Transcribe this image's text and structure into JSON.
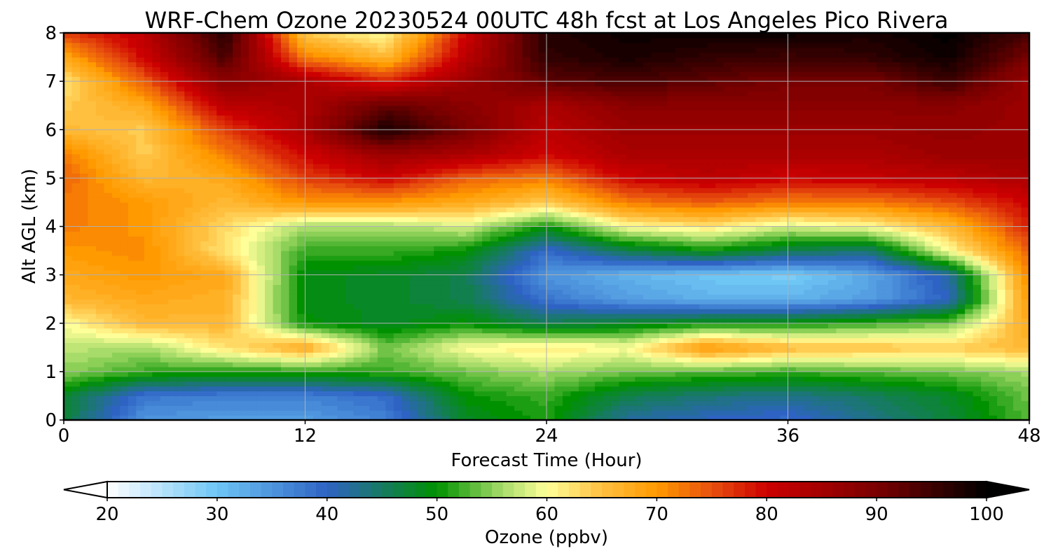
{
  "chart_data": {
    "type": "heatmap",
    "title": "WRF-Chem Ozone  20230524 00UTC 48h fcst at Los Angeles Pico Rivera",
    "xlabel": "Forecast Time (Hour)",
    "ylabel": "Alt AGL (km)",
    "xlim": [
      0,
      48
    ],
    "ylim": [
      0,
      8
    ],
    "x_ticks": [
      0,
      12,
      24,
      36,
      48
    ],
    "y_ticks": [
      0,
      1,
      2,
      3,
      4,
      5,
      6,
      7,
      8
    ],
    "grid": true,
    "colorbar": {
      "label": "Ozone  (ppbv)",
      "min": 20,
      "max": 100,
      "ticks": [
        20,
        30,
        40,
        50,
        60,
        70,
        80,
        90,
        100
      ],
      "extend": "both",
      "colors": [
        {
          "value": 20,
          "color": "#ffffff"
        },
        {
          "value": 30,
          "color": "#6ec6f5"
        },
        {
          "value": 40,
          "color": "#2e63c4"
        },
        {
          "value": 50,
          "color": "#009100"
        },
        {
          "value": 56,
          "color": "#a8dc6a"
        },
        {
          "value": 60,
          "color": "#ffff99"
        },
        {
          "value": 65,
          "color": "#ffc040"
        },
        {
          "value": 70,
          "color": "#ff9a00"
        },
        {
          "value": 75,
          "color": "#e8500e"
        },
        {
          "value": 80,
          "color": "#cc0000"
        },
        {
          "value": 90,
          "color": "#7a0000"
        },
        {
          "value": 100,
          "color": "#000000"
        }
      ]
    },
    "x": [
      0,
      4,
      8,
      12,
      16,
      20,
      24,
      28,
      32,
      36,
      40,
      44,
      48
    ],
    "y": [
      0,
      0.5,
      1,
      1.5,
      2,
      2.5,
      3,
      3.5,
      4,
      4.5,
      5,
      5.5,
      6,
      6.5,
      7,
      7.5,
      8
    ],
    "z": [
      [
        47,
        35,
        34,
        34,
        37,
        48,
        51,
        42,
        40,
        39,
        43,
        47,
        53
      ],
      [
        48,
        38,
        37,
        37,
        39,
        50,
        52,
        46,
        44,
        43,
        45,
        48,
        54
      ],
      [
        55,
        52,
        51,
        51,
        52,
        54,
        56,
        54,
        53,
        52,
        53,
        54,
        56
      ],
      [
        57,
        56,
        62,
        68,
        54,
        60,
        62,
        60,
        70,
        66,
        65,
        64,
        66
      ],
      [
        60,
        66,
        66,
        50,
        48,
        50,
        46,
        48,
        50,
        50,
        52,
        54,
        68
      ],
      [
        66,
        68,
        67,
        49,
        48,
        46,
        38,
        34,
        32,
        32,
        34,
        40,
        70
      ],
      [
        68,
        70,
        68,
        49,
        48,
        46,
        35,
        32,
        30,
        29,
        33,
        42,
        72
      ],
      [
        70,
        71,
        62,
        52,
        52,
        50,
        39,
        46,
        50,
        46,
        44,
        60,
        74
      ],
      [
        72,
        70,
        63,
        56,
        56,
        58,
        50,
        60,
        62,
        58,
        60,
        66,
        78
      ],
      [
        72,
        70,
        66,
        70,
        70,
        68,
        64,
        72,
        74,
        72,
        72,
        75,
        80
      ],
      [
        74,
        66,
        68,
        76,
        80,
        74,
        72,
        80,
        82,
        80,
        81,
        82,
        84
      ],
      [
        72,
        64,
        72,
        80,
        86,
        84,
        80,
        84,
        84,
        84,
        84,
        86,
        86
      ],
      [
        66,
        64,
        76,
        84,
        98,
        90,
        82,
        86,
        86,
        86,
        86,
        87,
        86
      ],
      [
        64,
        68,
        82,
        84,
        92,
        88,
        84,
        88,
        88,
        88,
        88,
        88,
        86
      ],
      [
        62,
        74,
        88,
        84,
        78,
        86,
        92,
        94,
        92,
        90,
        90,
        95,
        86
      ],
      [
        68,
        80,
        94,
        72,
        66,
        82,
        96,
        98,
        96,
        95,
        96,
        99,
        90
      ],
      [
        76,
        82,
        97,
        64,
        60,
        80,
        97,
        99,
        99,
        99,
        98,
        100,
        94
      ]
    ]
  }
}
